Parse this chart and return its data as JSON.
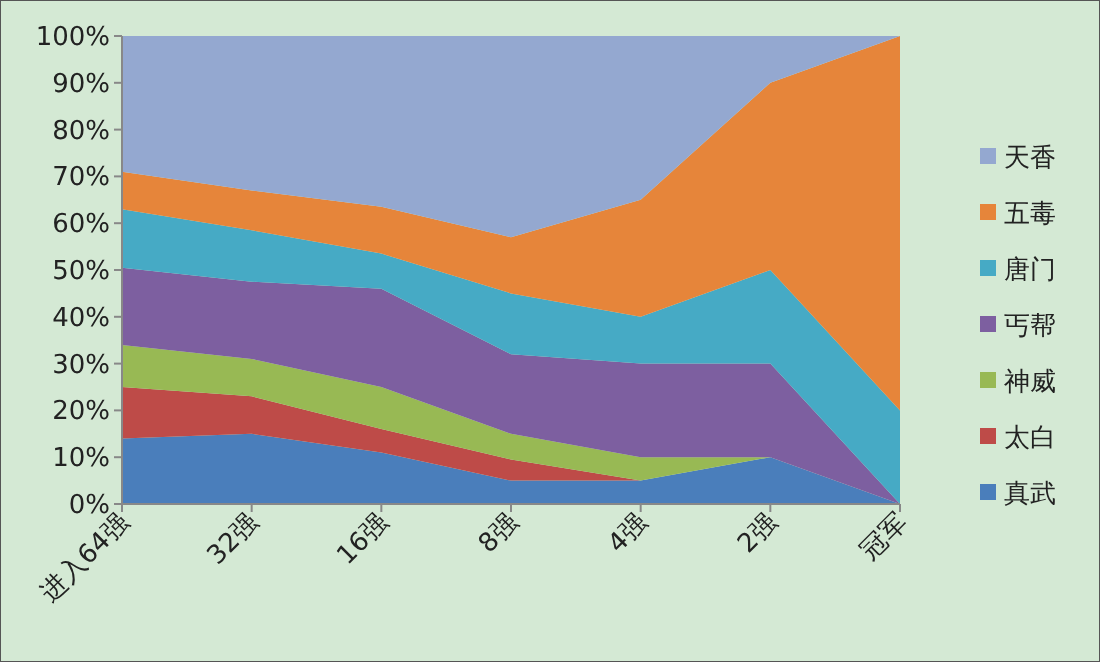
{
  "chart_data": {
    "type": "area",
    "stacked": true,
    "legend": "right",
    "categories": [
      "进入64强",
      "32强",
      "16强",
      "8强",
      "4强",
      "2强",
      "冠军"
    ],
    "ylim": [
      0,
      100
    ],
    "yticks": [
      {
        "value": 0,
        "label": "0%"
      },
      {
        "value": 10,
        "label": "10%"
      },
      {
        "value": 20,
        "label": "20%"
      },
      {
        "value": 30,
        "label": "30%"
      },
      {
        "value": 40,
        "label": "40%"
      },
      {
        "value": 50,
        "label": "50%"
      },
      {
        "value": 60,
        "label": "60%"
      },
      {
        "value": 70,
        "label": "70%"
      },
      {
        "value": 80,
        "label": "80%"
      },
      {
        "value": 90,
        "label": "90%"
      },
      {
        "value": 100,
        "label": "100%"
      }
    ],
    "series": [
      {
        "name": "真武",
        "color": "#4a7ebb",
        "values": [
          14,
          15,
          11,
          5,
          5,
          10,
          0
        ]
      },
      {
        "name": "太白",
        "color": "#be4b48",
        "values": [
          11,
          8,
          5,
          4.5,
          0,
          0,
          0
        ]
      },
      {
        "name": "神威",
        "color": "#98b954",
        "values": [
          9,
          8,
          9,
          5.5,
          5,
          0,
          0
        ]
      },
      {
        "name": "丐帮",
        "color": "#7d5fa0",
        "values": [
          16.5,
          16.5,
          21,
          17,
          20,
          20,
          0
        ]
      },
      {
        "name": "唐门",
        "color": "#46aac5",
        "values": [
          12.5,
          11,
          7.5,
          13,
          10,
          20,
          20
        ]
      },
      {
        "name": "五毒",
        "color": "#e6853a",
        "values": [
          8,
          8.5,
          10,
          12,
          25,
          40,
          80
        ]
      },
      {
        "name": "天香",
        "color": "#94a8d0",
        "values": [
          29,
          33,
          36.5,
          43,
          35,
          10,
          0
        ]
      }
    ]
  }
}
